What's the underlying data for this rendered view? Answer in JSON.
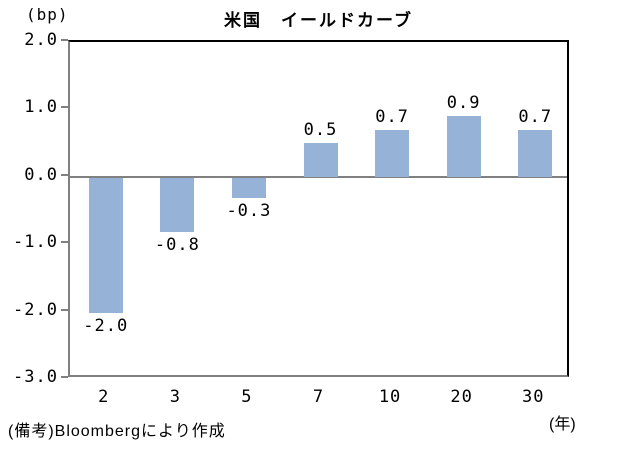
{
  "header": {
    "title": "米国　イールドカーブ",
    "y_axis_unit": "(bp)"
  },
  "chart_data": {
    "type": "bar",
    "title": "米国　イールドカーブ",
    "categories": [
      "2",
      "3",
      "5",
      "7",
      "10",
      "20",
      "30"
    ],
    "values": [
      -2.0,
      -0.8,
      -0.3,
      0.5,
      0.7,
      0.9,
      0.7
    ],
    "value_labels": [
      "-2.0",
      "-0.8",
      "-0.3",
      "0.5",
      "0.7",
      "0.9",
      "0.7"
    ],
    "xlabel": "(年)",
    "ylabel": "(bp)",
    "ylim": [
      -3.0,
      2.0
    ],
    "ytick_values": [
      2.0,
      1.0,
      0.0,
      -1.0,
      -2.0,
      -3.0
    ],
    "ytick_labels": [
      "2.0",
      "1.0",
      "0.0",
      "-1.0",
      "-2.0",
      "-3.0"
    ],
    "bar_color": "#96B2D6",
    "zero_line_color": "#808080",
    "grid": false,
    "legend": false
  },
  "footer": {
    "note": "(備考)Bloombergにより作成",
    "x_axis_unit": "(年)"
  }
}
